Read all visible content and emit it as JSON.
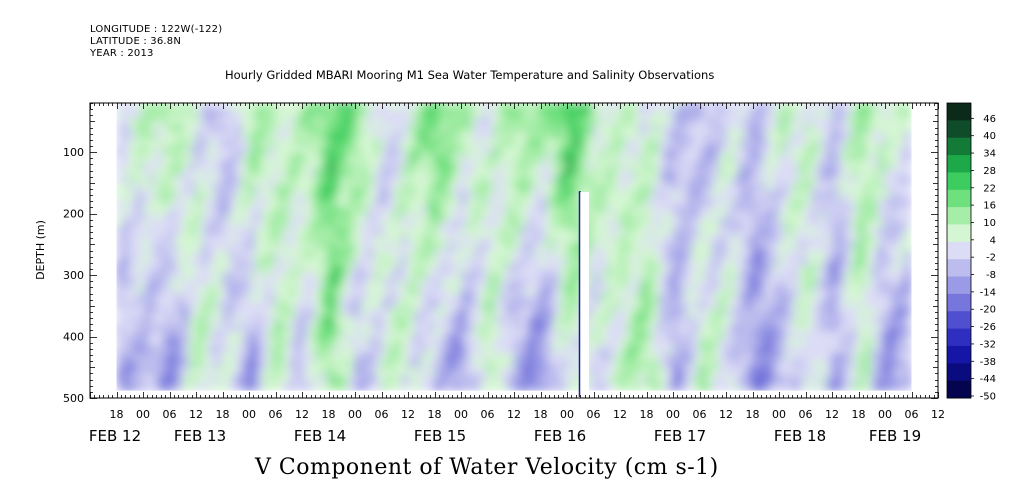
{
  "header": {
    "longitude": "LONGITUDE : 122W(-122)",
    "latitude": "LATITUDE : 36.8N",
    "year": "YEAR : 2013",
    "title": "Hourly Gridded MBARI Mooring M1 Sea Water Temperature and Salinity Observations"
  },
  "chart_data": {
    "type": "heatmap",
    "title": "Hourly Gridded MBARI Mooring M1 Sea Water Temperature and Salinity Observations",
    "xlabel": "V Component of Water Velocity (cm s-1)",
    "ylabel": "DEPTH (m)",
    "x_axis": {
      "range_hours_from_feb12_00": [
        -12,
        180
      ],
      "hour_tick_labels": [
        "18",
        "00",
        "06",
        "12",
        "18",
        "00",
        "06",
        "12",
        "18",
        "00",
        "06",
        "12",
        "18",
        "00",
        "06",
        "12",
        "18",
        "00",
        "06",
        "12",
        "18",
        "00",
        "06",
        "12",
        "18",
        "00",
        "06",
        "12",
        "18",
        "00",
        "06",
        "12"
      ],
      "date_labels": [
        "FEB 12",
        "FEB 13",
        "FEB 14",
        "FEB 15",
        "FEB 16",
        "FEB 17",
        "FEB 18",
        "FEB 19"
      ]
    },
    "y_axis": {
      "range": [
        500,
        20
      ],
      "inverted": true,
      "tick_labels": [
        "100",
        "200",
        "300",
        "400",
        "500"
      ]
    },
    "colorbar": {
      "levels": [
        "46",
        "40",
        "34",
        "28",
        "22",
        "16",
        "10",
        "4",
        "-2",
        "-8",
        "-14",
        "-20",
        "-26",
        "-32",
        "-38",
        "-44",
        "-50"
      ],
      "min": -50,
      "max": 50,
      "step": 2,
      "colors": [
        "#0b2a1a",
        "#0f4d2a",
        "#137a38",
        "#1da84a",
        "#3dcc5f",
        "#6fe07e",
        "#a6eda8",
        "#d4f6d2",
        "#dcdcf6",
        "#bcbcee",
        "#9a9ae6",
        "#7676dc",
        "#4f4fd0",
        "#2e2ec0",
        "#1616a6",
        "#0b0b80",
        "#05054f"
      ]
    },
    "data_region": {
      "x_hours": [
        -6,
        174
      ],
      "depth": [
        20,
        488
      ]
    },
    "gap": {
      "x_hours": [
        99,
        101
      ],
      "depth": [
        165,
        500
      ]
    },
    "sample_profile": {
      "hours": [
        -6,
        0,
        6,
        12,
        18,
        24,
        30,
        36,
        42,
        48,
        54,
        60,
        66,
        72,
        78,
        84,
        90,
        96,
        102,
        108,
        114,
        120,
        126,
        132,
        138,
        144,
        150,
        156,
        162,
        168,
        174
      ],
      "surface_v_cm_s": [
        4,
        8,
        12,
        2,
        -6,
        14,
        6,
        10,
        20,
        18,
        -4,
        8,
        22,
        10,
        2,
        16,
        12,
        24,
        10,
        6,
        4,
        -2,
        -8,
        2,
        -6,
        8,
        6,
        -4,
        12,
        8,
        2
      ],
      "deep_v_cm_s": [
        -10,
        -8,
        -14,
        8,
        2,
        -12,
        10,
        -6,
        16,
        -10,
        6,
        4,
        -8,
        -12,
        12,
        -14,
        -16,
        4,
        -2,
        8,
        14,
        -12,
        10,
        4,
        -14,
        -10,
        6,
        -12,
        8,
        -16,
        -6
      ]
    }
  }
}
